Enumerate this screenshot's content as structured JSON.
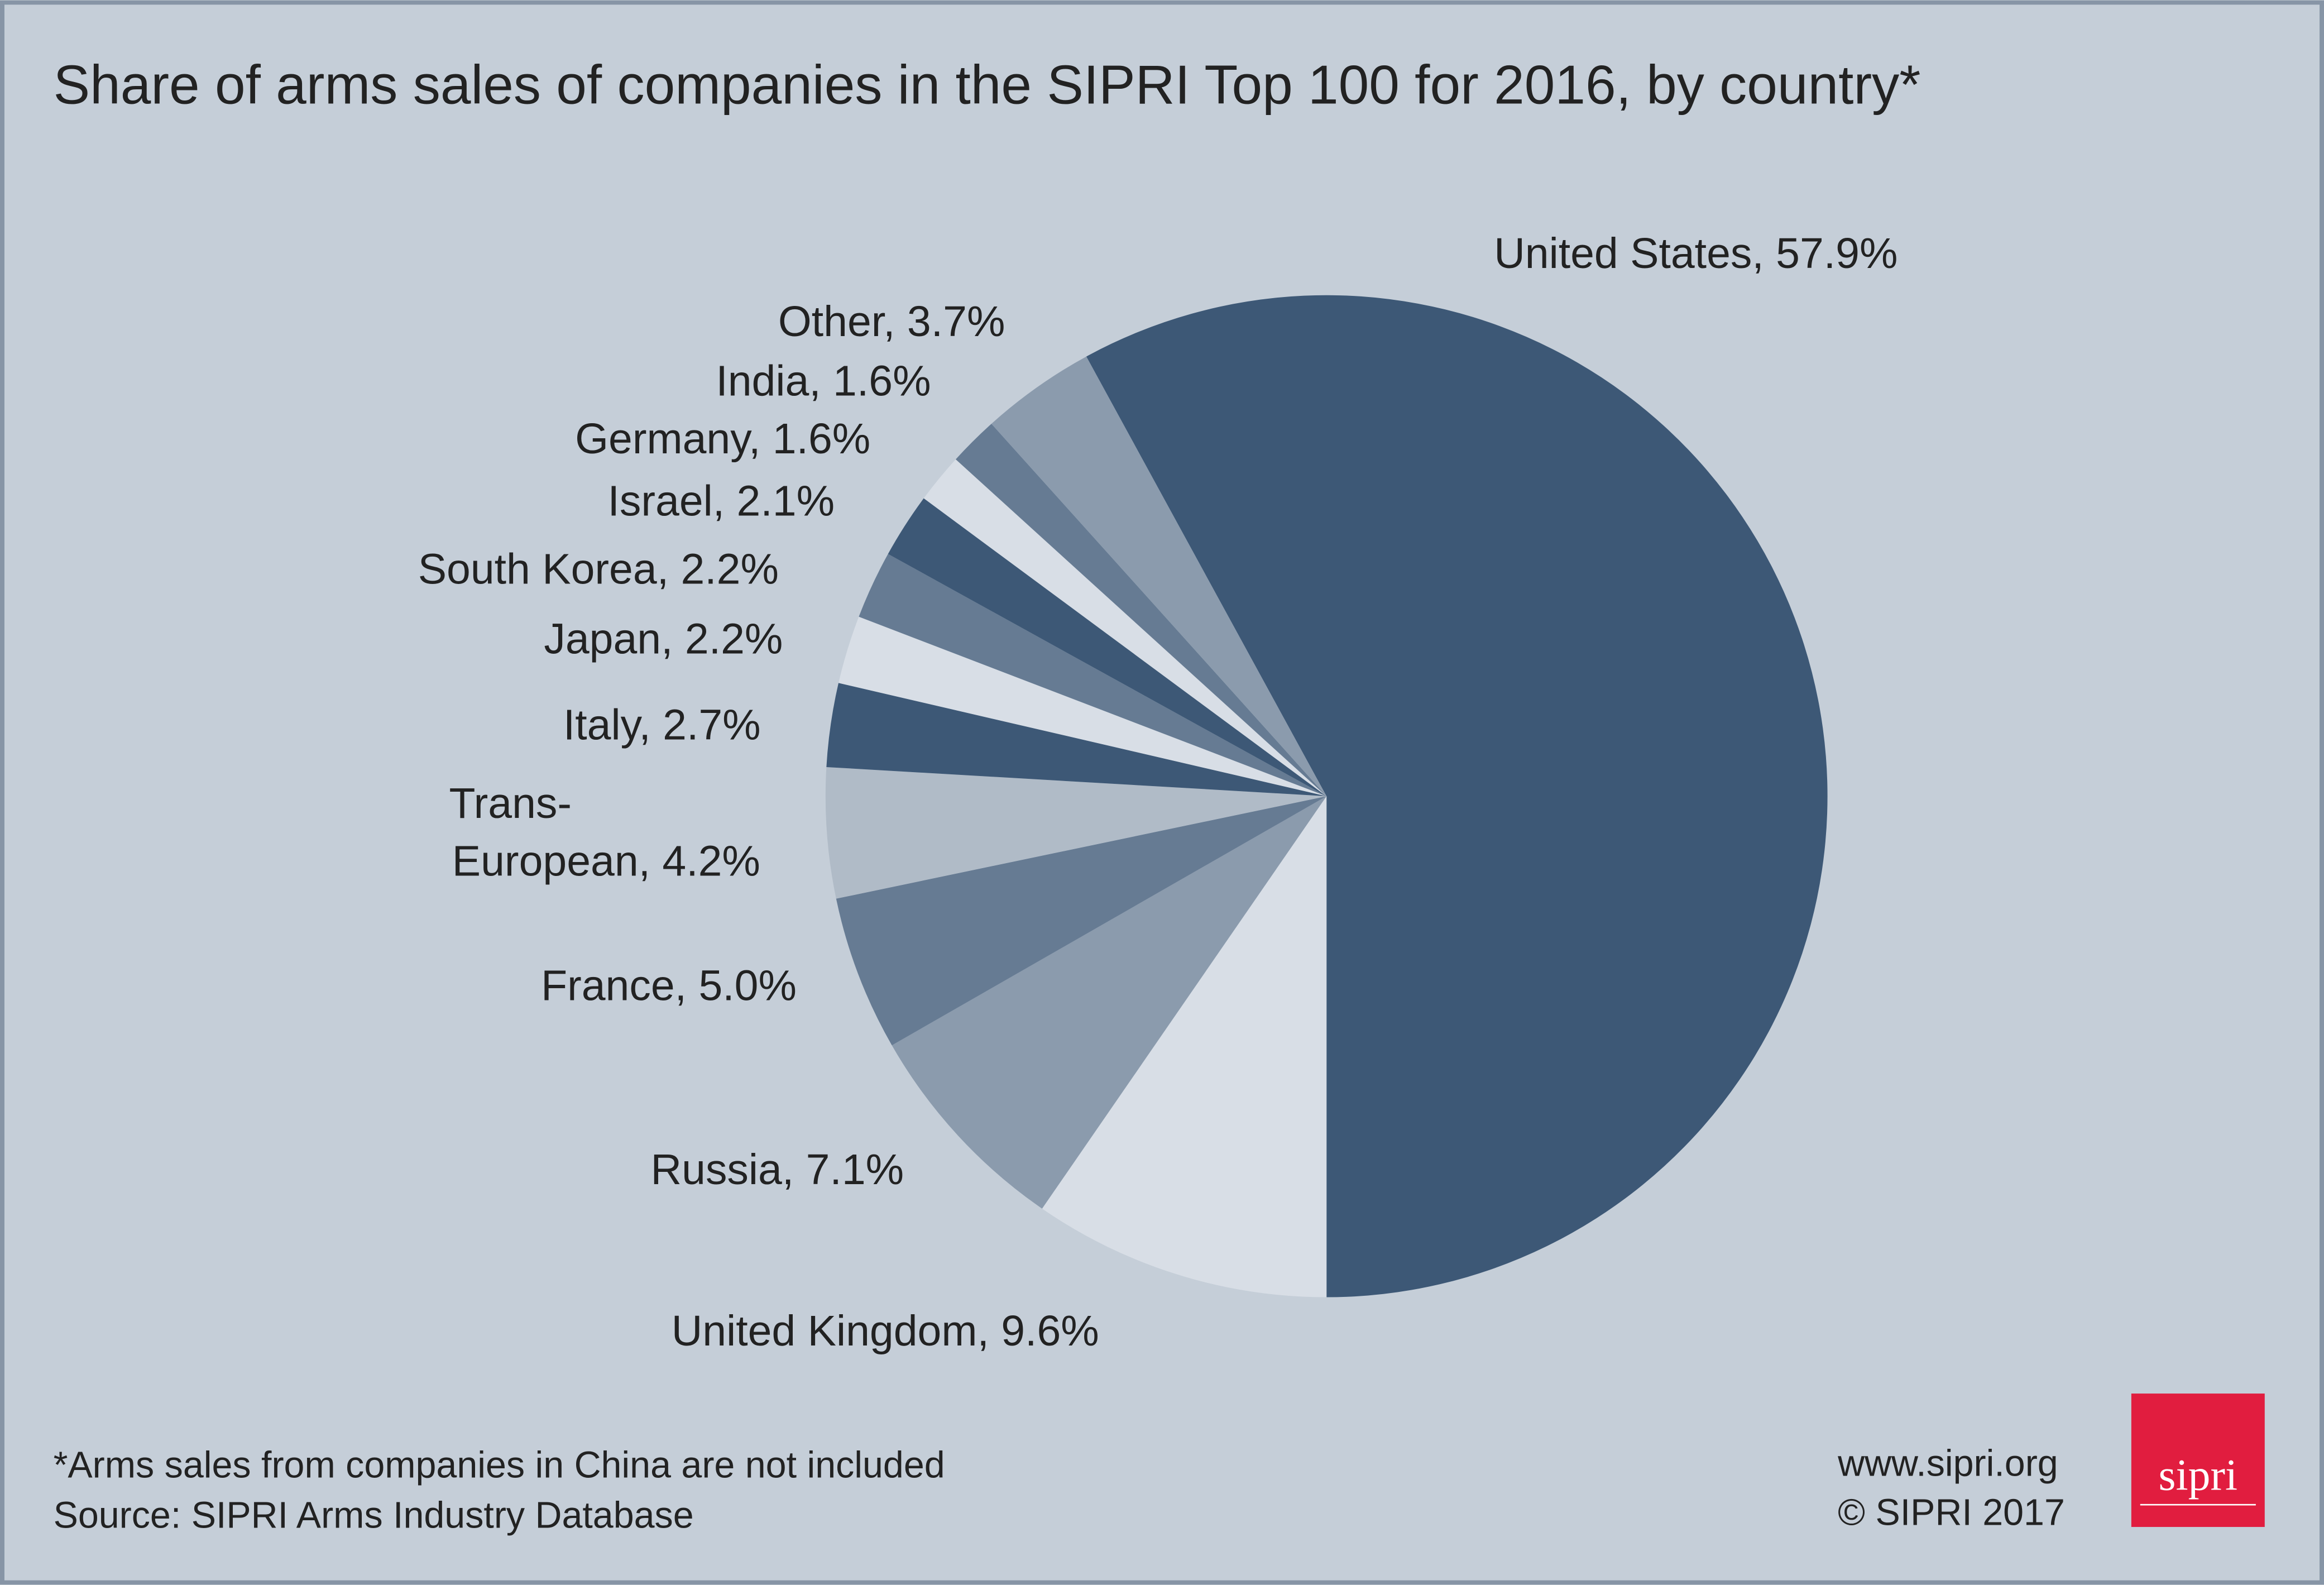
{
  "chart_data": {
    "type": "pie",
    "title": "Share of arms sales of companies in the SIPRI Top 100 for 2016, by country*",
    "categories": [
      "United States",
      "United Kingdom",
      "Russia",
      "France",
      "Trans-European",
      "Italy",
      "Japan",
      "South Korea",
      "Israel",
      "Germany",
      "India",
      "Other"
    ],
    "values": [
      57.9,
      9.6,
      7.1,
      5.0,
      4.2,
      2.7,
      2.2,
      2.2,
      2.1,
      1.6,
      1.6,
      3.7
    ],
    "labels": [
      [
        "United States, 57.9%"
      ],
      [
        "United Kingdom, 9.6%"
      ],
      [
        "Russia, 7.1%"
      ],
      [
        "France, 5.0%"
      ],
      [
        "Trans-",
        "European, 4.2%"
      ],
      [
        "Italy, 2.7%"
      ],
      [
        "Japan, 2.2%"
      ],
      [
        "South Korea, 2.2%"
      ],
      [
        "Israel, 2.1%"
      ],
      [
        "Germany, 1.6%"
      ],
      [
        "India, 1.6%"
      ],
      [
        "Other, 3.7%"
      ]
    ],
    "colors": [
      "#3d5876",
      "#d8dee6",
      "#8b9bad",
      "#667b93",
      "#b0bbc7",
      "#3d5876",
      "#d8dee6",
      "#667b93",
      "#3d5876",
      "#d8dee6",
      "#667b93",
      "#8b9bad"
    ],
    "footnote": "*Arms sales from companies in China are not included",
    "source": "Source: SIPRI Arms Industry Database",
    "website": "www.sipri.org",
    "copyright": "© SIPRI 2017",
    "logo": "sipri"
  }
}
